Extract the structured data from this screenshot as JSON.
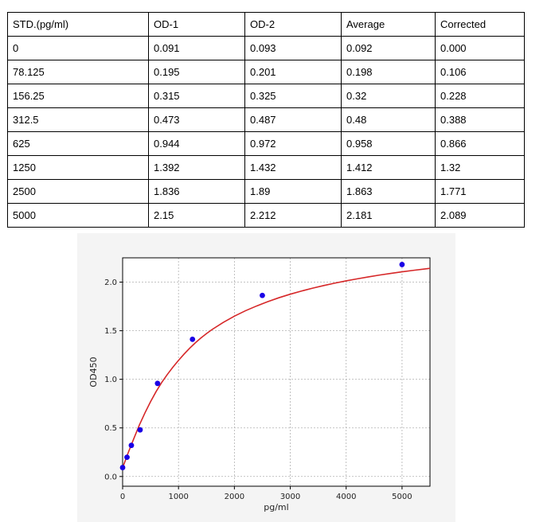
{
  "table": {
    "headers": [
      "STD.(pg/ml)",
      "OD-1",
      "OD-2",
      "Average",
      "Corrected"
    ],
    "rows": [
      [
        "0",
        "0.091",
        "0.093",
        "0.092",
        "0.000"
      ],
      [
        "78.125",
        "0.195",
        "0.201",
        "0.198",
        "0.106"
      ],
      [
        "156.25",
        "0.315",
        "0.325",
        "0.32",
        "0.228"
      ],
      [
        "312.5",
        "0.473",
        "0.487",
        "0.48",
        "0.388"
      ],
      [
        "625",
        "0.944",
        "0.972",
        "0.958",
        "0.866"
      ],
      [
        "1250",
        "1.392",
        "1.432",
        "1.412",
        "1.32"
      ],
      [
        "2500",
        "1.836",
        "1.89",
        "1.863",
        "1.771"
      ],
      [
        "5000",
        "2.15",
        "2.212",
        "2.181",
        "2.089"
      ]
    ]
  },
  "chart_data": {
    "type": "scatter",
    "title": "",
    "xlabel": "pg/ml",
    "ylabel": "OD450",
    "xlim": [
      0,
      5500
    ],
    "ylim": [
      -0.1,
      2.25
    ],
    "x_ticks": [
      0,
      1000,
      2000,
      3000,
      4000,
      5000
    ],
    "y_ticks": [
      0.0,
      0.5,
      1.0,
      1.5,
      2.0
    ],
    "y_tick_labels": [
      "0.0",
      "0.5",
      "1.0",
      "1.5",
      "2.0"
    ],
    "grid": true,
    "points": {
      "x": [
        0,
        78.125,
        156.25,
        312.5,
        625,
        1250,
        2500,
        5000
      ],
      "y": [
        0.092,
        0.198,
        0.32,
        0.48,
        0.958,
        1.412,
        1.863,
        2.181
      ],
      "color": "#1a00e6"
    },
    "fit_curve": {
      "color": "#d62728",
      "x": [
        0,
        100,
        200,
        300,
        400,
        500,
        600,
        700,
        800,
        900,
        1000,
        1100,
        1200,
        1300,
        1400,
        1500,
        1600,
        1800,
        2000,
        2200,
        2400,
        2600,
        2800,
        3000,
        3200,
        3400,
        3600,
        3800,
        4000,
        4200,
        4400,
        4600,
        4800,
        5000,
        5200,
        5400,
        5500
      ],
      "y": [
        0.09,
        0.245,
        0.39,
        0.53,
        0.655,
        0.77,
        0.875,
        0.968,
        1.05,
        1.125,
        1.195,
        1.26,
        1.32,
        1.375,
        1.425,
        1.47,
        1.512,
        1.585,
        1.65,
        1.706,
        1.755,
        1.8,
        1.84,
        1.876,
        1.908,
        1.938,
        1.965,
        1.99,
        2.013,
        2.034,
        2.054,
        2.073,
        2.09,
        2.106,
        2.121,
        2.135,
        2.142
      ]
    }
  }
}
